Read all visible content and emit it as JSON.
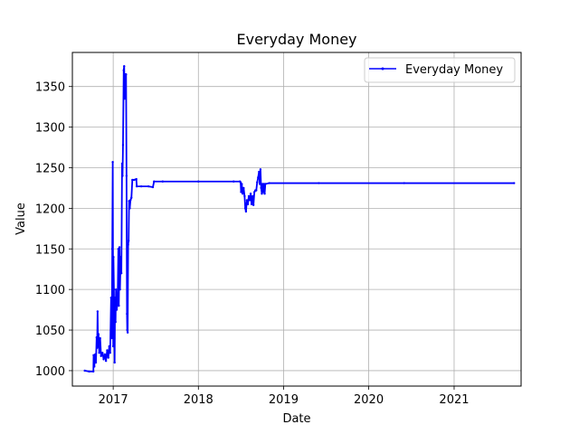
{
  "chart_data": {
    "type": "line",
    "title": "Everyday Money",
    "xlabel": "Date",
    "ylabel": "Value",
    "xlim": [
      "2016-07-10",
      "2021-10-15"
    ],
    "ylim": [
      981,
      1392
    ],
    "x_ticks": [
      {
        "date": "2017-01-01",
        "label": "2017"
      },
      {
        "date": "2018-01-01",
        "label": "2018"
      },
      {
        "date": "2019-01-01",
        "label": "2019"
      },
      {
        "date": "2020-01-01",
        "label": "2020"
      },
      {
        "date": "2021-01-01",
        "label": "2021"
      }
    ],
    "y_ticks": [
      1000,
      1050,
      1100,
      1150,
      1200,
      1250,
      1300,
      1350
    ],
    "grid": true,
    "legend_position": "top-right",
    "series": [
      {
        "name": "Everyday Money",
        "color": "#0000ff",
        "points": [
          [
            "2016-09-01",
            1000
          ],
          [
            "2016-09-20",
            999
          ],
          [
            "2016-10-08",
            999
          ],
          [
            "2016-10-09",
            1019
          ],
          [
            "2016-10-12",
            1005
          ],
          [
            "2016-10-16",
            1020
          ],
          [
            "2016-10-19",
            1010
          ],
          [
            "2016-10-22",
            1041
          ],
          [
            "2016-10-24",
            1028
          ],
          [
            "2016-10-26",
            1073
          ],
          [
            "2016-10-28",
            1030
          ],
          [
            "2016-10-30",
            1045
          ],
          [
            "2016-11-02",
            1022
          ],
          [
            "2016-11-06",
            1040
          ],
          [
            "2016-11-10",
            1018
          ],
          [
            "2016-11-16",
            1022
          ],
          [
            "2016-11-21",
            1014
          ],
          [
            "2016-11-26",
            1020
          ],
          [
            "2016-12-01",
            1012
          ],
          [
            "2016-12-06",
            1025
          ],
          [
            "2016-12-11",
            1016
          ],
          [
            "2016-12-15",
            1030
          ],
          [
            "2016-12-19",
            1022
          ],
          [
            "2016-12-23",
            1090
          ],
          [
            "2016-12-26",
            1040
          ],
          [
            "2016-12-28",
            1150
          ],
          [
            "2016-12-30",
            1257
          ],
          [
            "2017-01-01",
            1030
          ],
          [
            "2017-01-02",
            1140
          ],
          [
            "2017-01-04",
            1100
          ],
          [
            "2017-01-06",
            1040
          ],
          [
            "2017-01-07",
            1010
          ],
          [
            "2017-01-09",
            1090
          ],
          [
            "2017-01-11",
            1060
          ],
          [
            "2017-01-13",
            1100
          ],
          [
            "2017-01-16",
            1075
          ],
          [
            "2017-01-20",
            1085
          ],
          [
            "2017-01-23",
            1150
          ],
          [
            "2017-01-25",
            1080
          ],
          [
            "2017-01-28",
            1152
          ],
          [
            "2017-01-30",
            1100
          ],
          [
            "2017-02-02",
            1140
          ],
          [
            "2017-02-05",
            1120
          ],
          [
            "2017-02-08",
            1255
          ],
          [
            "2017-02-10",
            1240
          ],
          [
            "2017-02-12",
            1278
          ],
          [
            "2017-02-15",
            1370
          ],
          [
            "2017-02-17",
            1375
          ],
          [
            "2017-02-19",
            1335
          ],
          [
            "2017-02-21",
            1365
          ],
          [
            "2017-02-23",
            1340
          ],
          [
            "2017-02-25",
            1365
          ],
          [
            "2017-02-27",
            1240
          ],
          [
            "2017-03-01",
            1070
          ],
          [
            "2017-03-02",
            1050
          ],
          [
            "2017-03-04",
            1047
          ],
          [
            "2017-03-06",
            1155
          ],
          [
            "2017-03-08",
            1160
          ],
          [
            "2017-03-10",
            1209
          ],
          [
            "2017-03-13",
            1200
          ],
          [
            "2017-03-16",
            1210
          ],
          [
            "2017-03-20",
            1213
          ],
          [
            "2017-03-24",
            1235
          ],
          [
            "2017-04-01",
            1235
          ],
          [
            "2017-04-10",
            1236
          ],
          [
            "2017-04-12",
            1227
          ],
          [
            "2017-05-01",
            1227
          ],
          [
            "2017-06-01",
            1227
          ],
          [
            "2017-06-20",
            1226
          ],
          [
            "2017-06-25",
            1233
          ],
          [
            "2017-08-01",
            1233
          ],
          [
            "2018-01-01",
            1233
          ],
          [
            "2018-06-01",
            1233
          ],
          [
            "2018-06-28",
            1233
          ],
          [
            "2018-07-01",
            1232
          ],
          [
            "2018-07-03",
            1220
          ],
          [
            "2018-07-06",
            1230
          ],
          [
            "2018-07-10",
            1218
          ],
          [
            "2018-07-14",
            1225
          ],
          [
            "2018-07-18",
            1215
          ],
          [
            "2018-07-21",
            1200
          ],
          [
            "2018-07-24",
            1196
          ],
          [
            "2018-07-28",
            1210
          ],
          [
            "2018-08-01",
            1205
          ],
          [
            "2018-08-05",
            1215
          ],
          [
            "2018-08-09",
            1210
          ],
          [
            "2018-08-13",
            1218
          ],
          [
            "2018-08-17",
            1205
          ],
          [
            "2018-08-21",
            1215
          ],
          [
            "2018-08-25",
            1204
          ],
          [
            "2018-08-29",
            1220
          ],
          [
            "2018-09-02",
            1222
          ],
          [
            "2018-09-06",
            1222
          ],
          [
            "2018-09-10",
            1232
          ],
          [
            "2018-09-14",
            1238
          ],
          [
            "2018-09-18",
            1245
          ],
          [
            "2018-09-21",
            1230
          ],
          [
            "2018-09-24",
            1248
          ],
          [
            "2018-09-27",
            1225
          ],
          [
            "2018-09-30",
            1218
          ],
          [
            "2018-10-03",
            1230
          ],
          [
            "2018-10-06",
            1220
          ],
          [
            "2018-10-09",
            1230
          ],
          [
            "2018-10-12",
            1218
          ],
          [
            "2018-10-15",
            1230
          ],
          [
            "2018-11-01",
            1231
          ],
          [
            "2019-06-01",
            1231
          ],
          [
            "2020-06-01",
            1231
          ],
          [
            "2021-09-15",
            1231
          ]
        ]
      }
    ]
  }
}
